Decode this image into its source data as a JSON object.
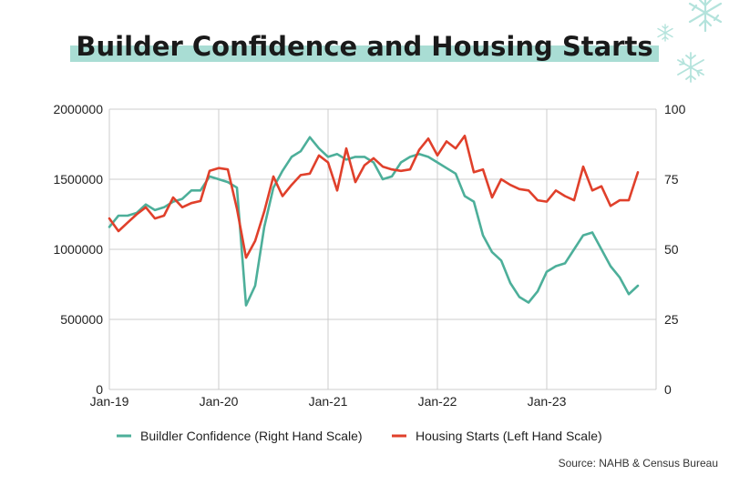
{
  "title": "Builder Confidence and Housing Starts",
  "source": "Source: NAHB & Census Bureau",
  "decorations": [
    "snowflake-icon",
    "snowflake-icon",
    "snowflake-icon"
  ],
  "colors": {
    "builder": "#4daf9a",
    "starts": "#e0402b",
    "highlight": "#a9ddd4",
    "grid": "#cccccc",
    "snowflake": "#b4e3dc"
  },
  "chart_data": {
    "type": "line",
    "x_ticks": [
      "Jan-19",
      "Jan-20",
      "Jan-21",
      "Jan-22",
      "Jan-23"
    ],
    "y_left": {
      "min": 0,
      "max": 2000000,
      "ticks": [
        "0",
        "500000",
        "1000000",
        "1500000",
        "2000000"
      ]
    },
    "y_right": {
      "min": 0,
      "max": 100,
      "ticks": [
        "0",
        "25",
        "50",
        "75",
        "100"
      ]
    },
    "legend": {
      "placement": "bottom"
    },
    "grid": true,
    "series": [
      {
        "name": "Buildler Confidence (Right Hand Scale)",
        "axis": "right",
        "color": "#4daf9a",
        "values": [
          58,
          62,
          62,
          63,
          66,
          64,
          65,
          67,
          68,
          71,
          71,
          76,
          75,
          74,
          72,
          30,
          37,
          58,
          72,
          78,
          83,
          85,
          90,
          86,
          83,
          84,
          82,
          83,
          83,
          81,
          75,
          76,
          81,
          83,
          84,
          83,
          81,
          79,
          77,
          69,
          67,
          55,
          49,
          46,
          38,
          33,
          31,
          35,
          42,
          44,
          45,
          50,
          55,
          56,
          50,
          44,
          40,
          34,
          37
        ]
      },
      {
        "name": "Housing Starts (Left Hand Scale)",
        "axis": "left",
        "color": "#e0402b",
        "values": [
          1220000,
          1130000,
          1190000,
          1250000,
          1300000,
          1220000,
          1240000,
          1370000,
          1300000,
          1330000,
          1345000,
          1560000,
          1580000,
          1570000,
          1290000,
          940000,
          1060000,
          1270000,
          1520000,
          1380000,
          1460000,
          1530000,
          1540000,
          1670000,
          1620000,
          1420000,
          1720000,
          1480000,
          1600000,
          1650000,
          1590000,
          1570000,
          1560000,
          1570000,
          1710000,
          1790000,
          1670000,
          1770000,
          1720000,
          1810000,
          1550000,
          1570000,
          1370000,
          1500000,
          1460000,
          1430000,
          1420000,
          1350000,
          1340000,
          1420000,
          1380000,
          1350000,
          1590000,
          1420000,
          1450000,
          1310000,
          1350000,
          1350000,
          1550000
        ]
      }
    ]
  }
}
